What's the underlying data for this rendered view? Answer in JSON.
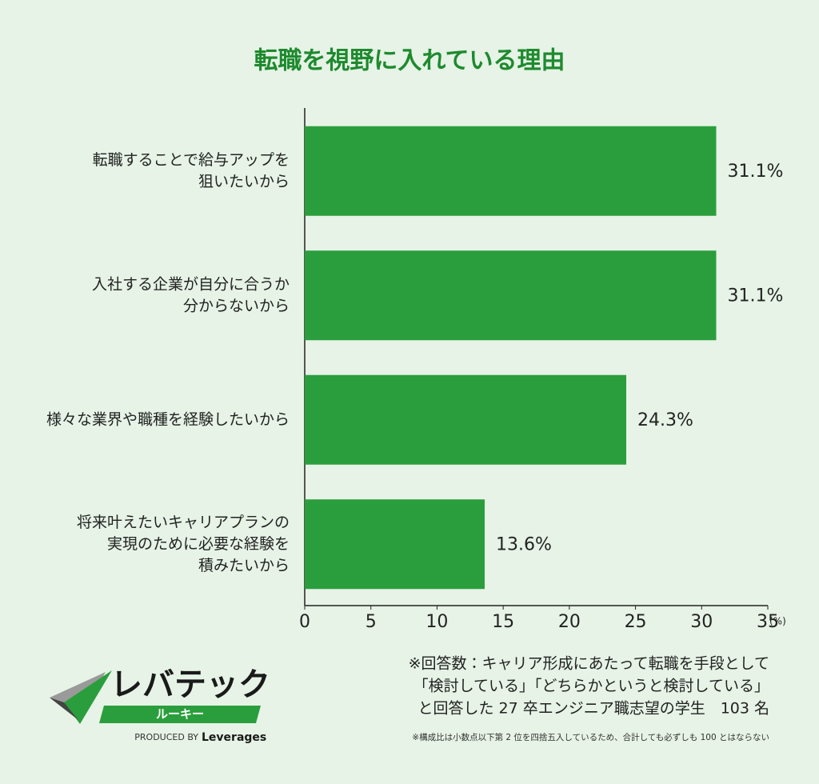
{
  "chart_data": {
    "type": "bar",
    "orientation": "horizontal",
    "title": "転職を視野に入れている理由",
    "categories": [
      [
        "転職することで給与アップを",
        "狙いたいから"
      ],
      [
        "入社する企業が自分に合うか",
        "分からないから"
      ],
      [
        "様々な業界や職種を経験したいから"
      ],
      [
        "将来叶えたいキャリアプランの",
        "実現のために必要な経験を",
        "積みたいから"
      ]
    ],
    "values": [
      31.1,
      31.1,
      24.3,
      13.6
    ],
    "value_labels": [
      "31.1%",
      "31.1%",
      "24.3%",
      "13.6%"
    ],
    "color": "#2a9e3c",
    "xlim": [
      0,
      35
    ],
    "xticks": [
      0,
      5,
      10,
      15,
      20,
      25,
      30,
      35
    ],
    "x_label": "(%)",
    "grid": false
  },
  "notes": [
    "※回答数：キャリア形成にあたって転職を手段として",
    "「検討している」「どちらかというと検討している」",
    "と回答した 27 卒エンジニア職志望の学生　103 名"
  ],
  "footnote": "※構成比は小数点以下第 2 位を四捨五入しているため、合計しても必ずしも 100 とはならない",
  "logo": {
    "name": "レバテック",
    "sub": "ルーキー",
    "produced_by": "PRODUCED BY",
    "brand": "Leverages"
  }
}
